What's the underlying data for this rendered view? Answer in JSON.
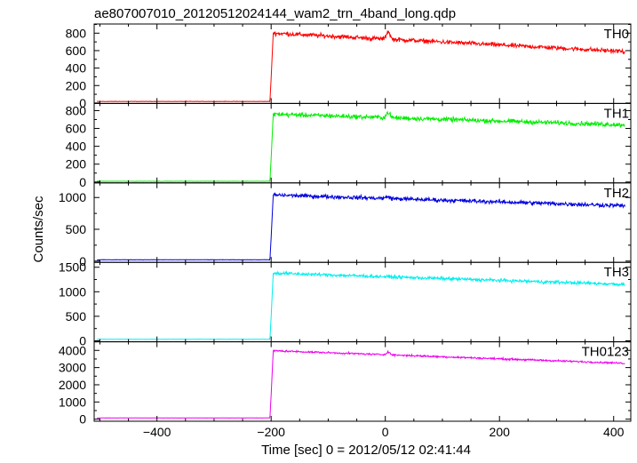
{
  "chart_data": {
    "type": "line",
    "title": "ae807007010_20120512024144_wam2_trn_4band_long.qdp",
    "xlabel": "Time [sec] 0 = 2012/05/12 02:41:44",
    "ylabel": "Counts/sec",
    "xlim": [
      -510,
      430
    ],
    "x_ticks": [
      -400,
      -200,
      0,
      200,
      400
    ],
    "x_tick_labels": [
      "−400",
      "−200",
      "0",
      "200",
      "400"
    ],
    "trigger_time": -200,
    "panels": [
      {
        "name": "TH0",
        "color": "#ff0000",
        "ylim": [
          -5,
          905
        ],
        "y_ticks": [
          0,
          200,
          400,
          600,
          800
        ],
        "y_tick_labels": [
          "0",
          "200",
          "400",
          "600",
          "800"
        ],
        "background": 18,
        "peak": 800,
        "end": 590,
        "noise": 22,
        "spike": 90,
        "spike_time": 5,
        "start": -505,
        "stop": 420
      },
      {
        "name": "TH1",
        "color": "#00ee00",
        "ylim": [
          -10,
          880
        ],
        "y_ticks": [
          0,
          200,
          400,
          600,
          800
        ],
        "y_tick_labels": [
          "0",
          "200",
          "400",
          "600",
          "800"
        ],
        "background": 8,
        "peak": 760,
        "end": 640,
        "noise": 22,
        "spike": 60,
        "spike_time": 5,
        "start": -505,
        "stop": 420
      },
      {
        "name": "TH2",
        "color": "#0000dd",
        "ylim": [
          -20,
          1230
        ],
        "y_ticks": [
          0,
          500,
          1000
        ],
        "y_tick_labels": [
          "0",
          "500",
          "1000"
        ],
        "background": 20,
        "peak": 1040,
        "end": 870,
        "noise": 28,
        "spike": 30,
        "spike_time": 5,
        "start": -505,
        "stop": 420
      },
      {
        "name": "TH3",
        "color": "#00eeee",
        "ylim": [
          -20,
          1600
        ],
        "y_ticks": [
          0,
          500,
          1000,
          1500
        ],
        "y_tick_labels": [
          "0",
          "500",
          "1000",
          "1500"
        ],
        "background": 30,
        "peak": 1380,
        "end": 1150,
        "noise": 28,
        "spike": 0,
        "spike_time": 5,
        "start": -505,
        "stop": 420
      },
      {
        "name": "TH0123",
        "color": "#ee00ee",
        "ylim": [
          -120,
          4500
        ],
        "y_ticks": [
          0,
          1000,
          2000,
          3000,
          4000
        ],
        "y_tick_labels": [
          "0",
          "1000",
          "2000",
          "3000",
          "4000"
        ],
        "background": 70,
        "peak": 3980,
        "end": 3250,
        "noise": 45,
        "spike": 170,
        "spike_time": 5,
        "start": -505,
        "stop": 420
      }
    ]
  }
}
